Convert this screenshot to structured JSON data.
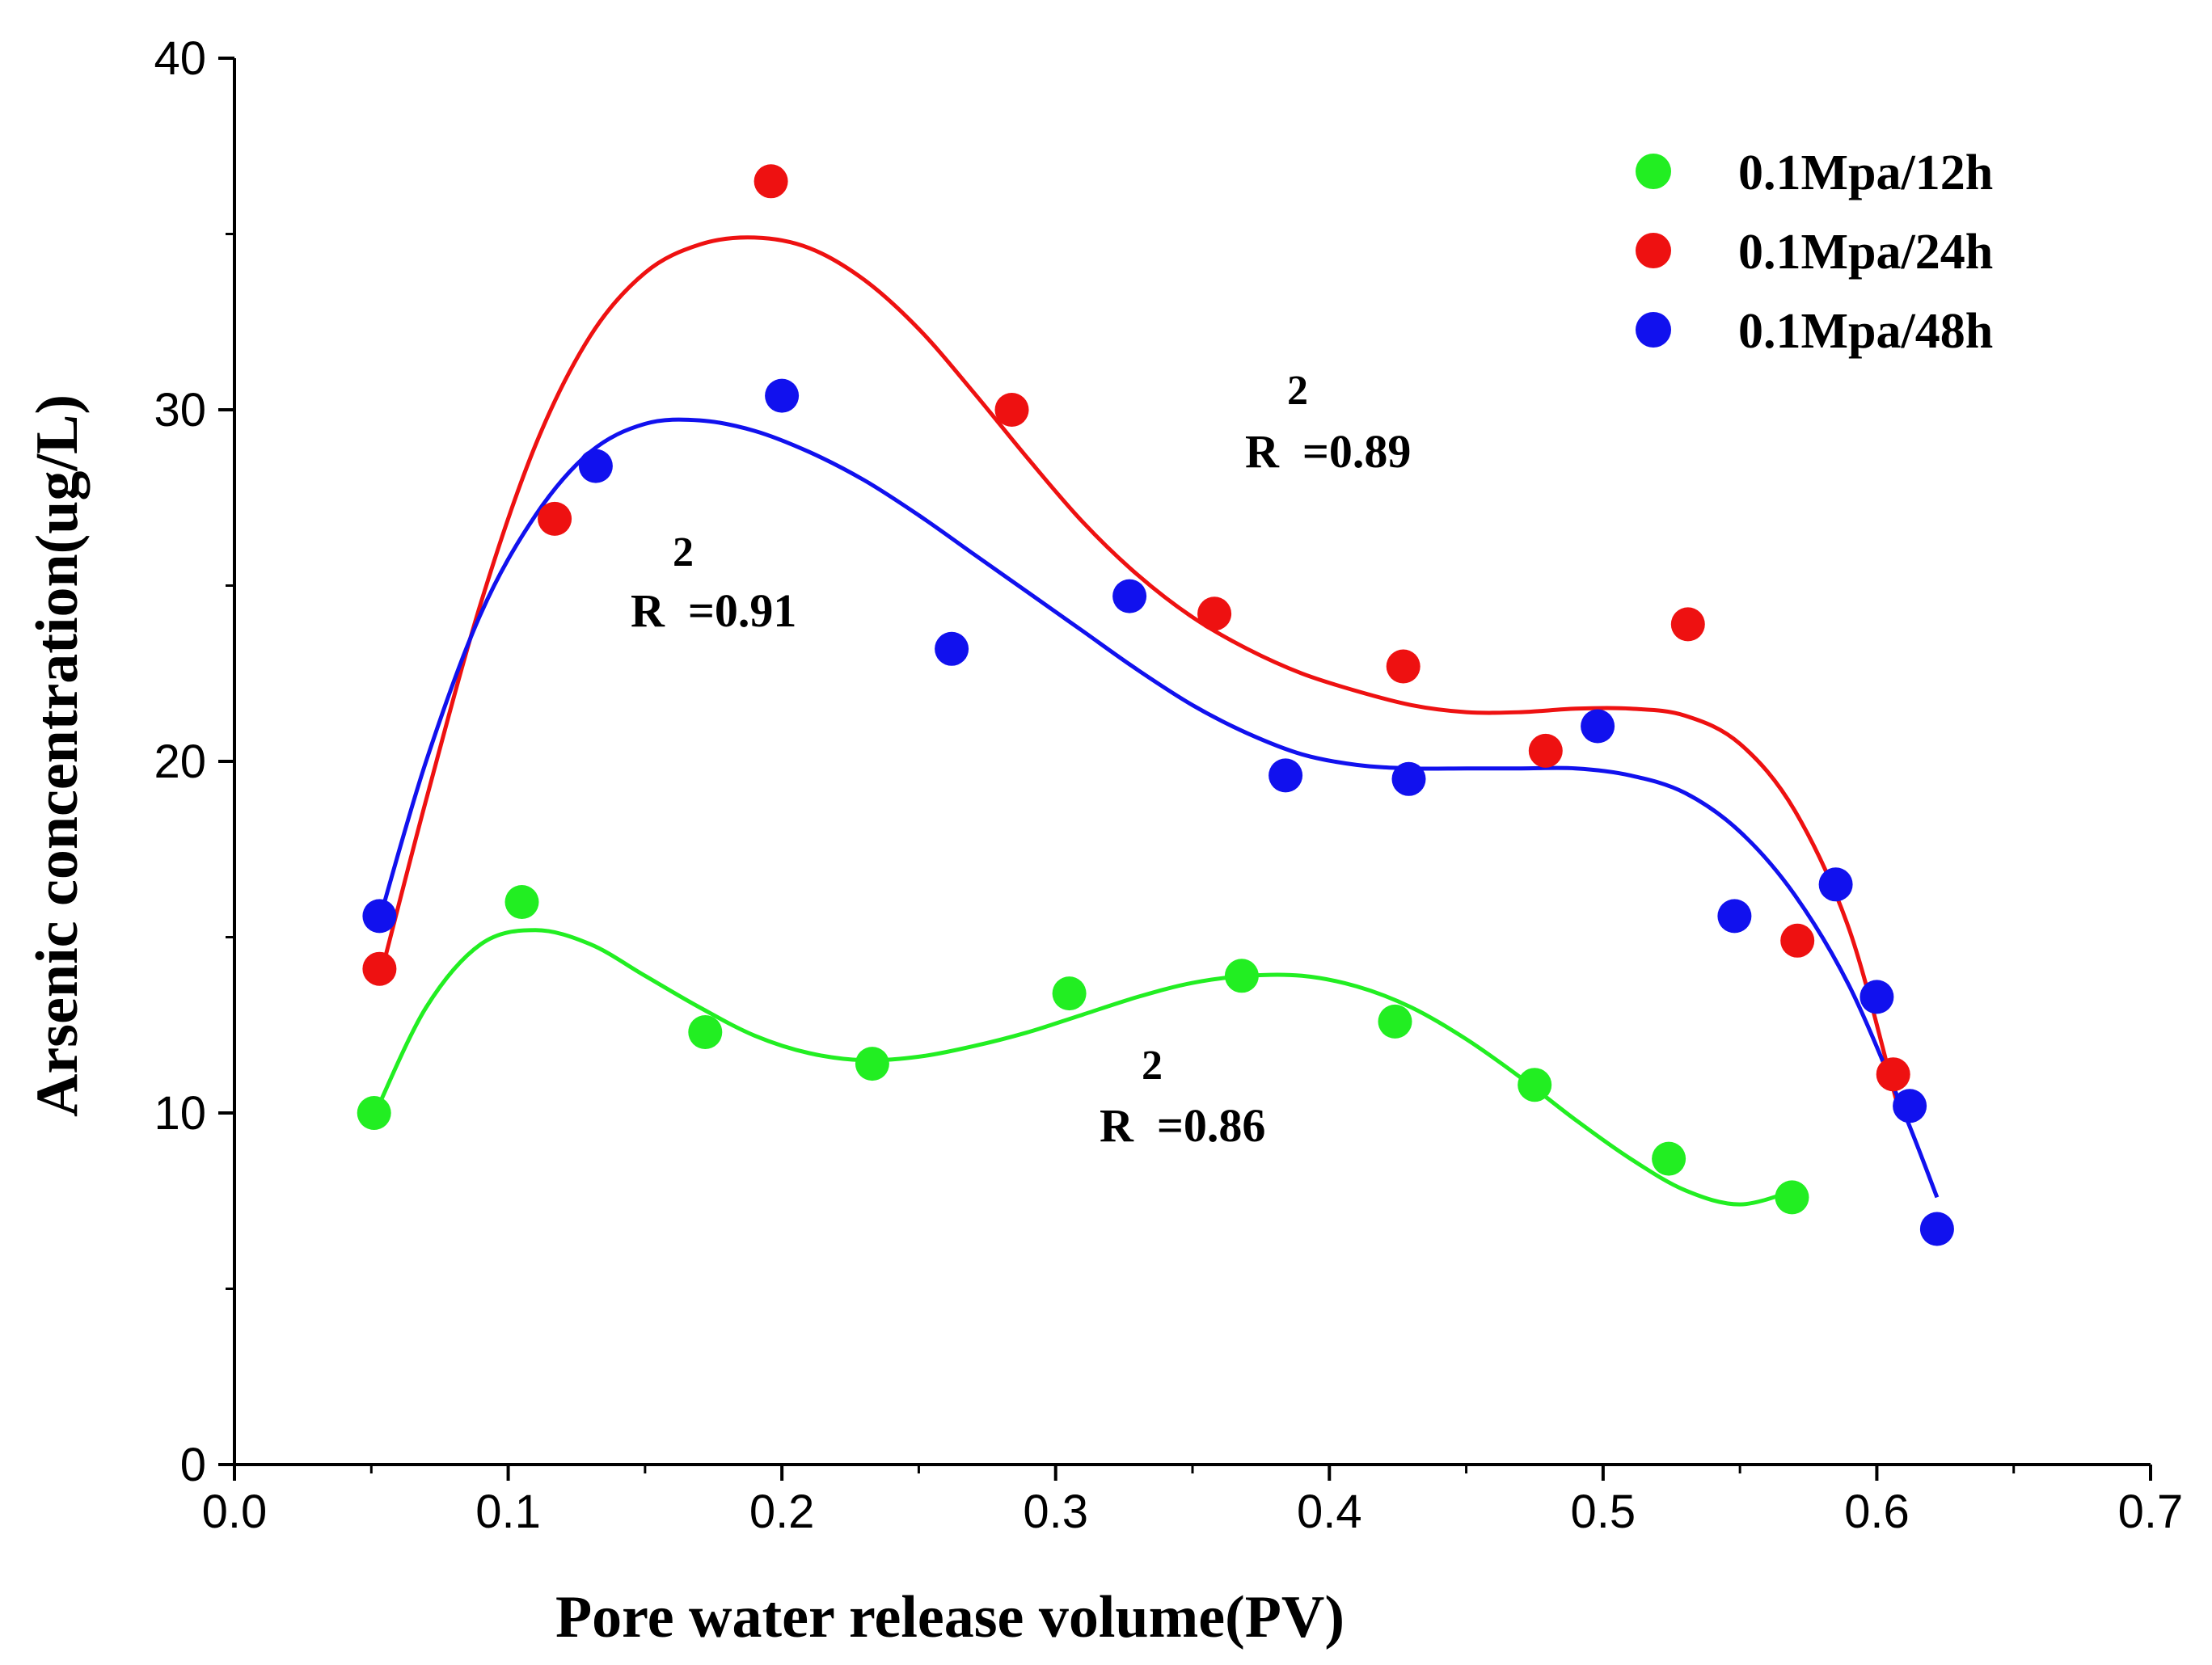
{
  "chart_data": {
    "type": "scatter",
    "title": "",
    "xlabel": "Pore water release volume(PV)",
    "ylabel": "Arsenic concentration(ug/L)",
    "xlim": [
      0.0,
      0.7
    ],
    "ylim": [
      0,
      40
    ],
    "xticks": [
      "0.0",
      "0.1",
      "0.2",
      "0.3",
      "0.4",
      "0.5",
      "0.6",
      "0.7"
    ],
    "yticks": [
      "0",
      "10",
      "20",
      "30",
      "40"
    ],
    "grid": false,
    "legend_position": "top-right",
    "series": [
      {
        "name": "0.1Mpa/12h",
        "color": "#22ee22",
        "x": [
          0.051,
          0.105,
          0.172,
          0.233,
          0.305,
          0.368,
          0.424,
          0.475,
          0.524,
          0.569
        ],
        "y": [
          10.0,
          16.0,
          12.3,
          11.4,
          13.4,
          13.9,
          12.6,
          10.8,
          8.7,
          7.6
        ],
        "fit": {
          "x": [
            0.052,
            0.07,
            0.09,
            0.11,
            0.13,
            0.15,
            0.17,
            0.19,
            0.21,
            0.23,
            0.25,
            0.27,
            0.29,
            0.31,
            0.33,
            0.35,
            0.37,
            0.39,
            0.41,
            0.43,
            0.45,
            0.47,
            0.49,
            0.51,
            0.53,
            0.55,
            0.57
          ],
          "y": [
            10.1,
            13.0,
            14.8,
            15.2,
            14.8,
            13.9,
            13.0,
            12.2,
            11.7,
            11.5,
            11.6,
            11.9,
            12.3,
            12.8,
            13.3,
            13.7,
            13.9,
            13.9,
            13.6,
            13.0,
            12.1,
            11.0,
            9.8,
            8.7,
            7.8,
            7.4,
            7.8
          ]
        },
        "r2_label": "R  =0.86",
        "r2_sup": "2"
      },
      {
        "name": "0.1Mpa/24h",
        "color": "#ee1111",
        "x": [
          0.053,
          0.117,
          0.196,
          0.284,
          0.358,
          0.427,
          0.479,
          0.531,
          0.571,
          0.606
        ],
        "y": [
          14.1,
          26.9,
          36.5,
          30.0,
          24.2,
          22.7,
          20.3,
          23.9,
          14.9,
          11.1
        ],
        "fit": {
          "x": [
            0.055,
            0.07,
            0.09,
            0.11,
            0.13,
            0.15,
            0.17,
            0.19,
            0.21,
            0.23,
            0.25,
            0.27,
            0.29,
            0.31,
            0.33,
            0.35,
            0.37,
            0.39,
            0.41,
            0.43,
            0.45,
            0.47,
            0.49,
            0.51,
            0.53,
            0.55,
            0.57,
            0.59,
            0.607
          ],
          "y": [
            14.4,
            18.9,
            24.5,
            29.0,
            32.1,
            33.9,
            34.7,
            34.9,
            34.6,
            33.7,
            32.3,
            30.5,
            28.6,
            26.8,
            25.3,
            24.1,
            23.2,
            22.5,
            22.0,
            21.6,
            21.4,
            21.4,
            21.5,
            21.5,
            21.3,
            20.5,
            18.6,
            15.2,
            10.4
          ]
        },
        "r2_label": "R  =0.89",
        "r2_sup": "2"
      },
      {
        "name": "0.1Mpa/48h",
        "color": "#1111ee",
        "x": [
          0.053,
          0.132,
          0.2,
          0.262,
          0.327,
          0.384,
          0.429,
          0.498,
          0.548,
          0.585,
          0.6,
          0.612,
          0.622
        ],
        "y": [
          15.6,
          28.4,
          30.4,
          23.2,
          24.7,
          19.6,
          19.5,
          21.0,
          15.6,
          16.5,
          13.3,
          10.2,
          6.7
        ],
        "fit": {
          "x": [
            0.053,
            0.07,
            0.09,
            0.11,
            0.13,
            0.15,
            0.17,
            0.19,
            0.21,
            0.23,
            0.25,
            0.27,
            0.29,
            0.31,
            0.33,
            0.35,
            0.37,
            0.39,
            0.41,
            0.43,
            0.45,
            0.47,
            0.49,
            0.51,
            0.53,
            0.55,
            0.57,
            0.59,
            0.61,
            0.622
          ],
          "y": [
            15.5,
            20.0,
            24.2,
            27.0,
            28.8,
            29.6,
            29.7,
            29.4,
            28.8,
            28.0,
            27.0,
            25.9,
            24.8,
            23.7,
            22.6,
            21.6,
            20.8,
            20.2,
            19.9,
            19.8,
            19.8,
            19.8,
            19.8,
            19.6,
            19.1,
            18.0,
            16.2,
            13.6,
            10.0,
            7.6
          ]
        },
        "r2_label": "R  =0.91",
        "r2_sup": "2"
      }
    ]
  }
}
